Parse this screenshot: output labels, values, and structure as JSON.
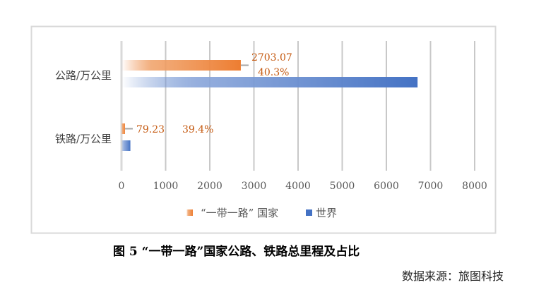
{
  "chart_data": {
    "type": "bar",
    "orientation": "horizontal",
    "categories": [
      "公路/万公里",
      "铁路/万公里"
    ],
    "series": [
      {
        "name": "“一带一路” 国家",
        "values": [
          2703.07,
          79.23
        ],
        "labels": [
          "2703.07",
          "79.23"
        ],
        "share_labels": [
          "40.3%",
          "39.4%"
        ],
        "color": "#ED7D31"
      },
      {
        "name": "世界",
        "values": [
          6707,
          201
        ],
        "color": "#4472C4"
      }
    ],
    "xlim": [
      0,
      8000
    ],
    "xticks": [
      "0",
      "1000",
      "2000",
      "3000",
      "4000",
      "5000",
      "6000",
      "7000",
      "8000"
    ],
    "grid": true,
    "legend": "bottom"
  },
  "caption": "图 5  “一带一路”国家公路、铁路总里程及占比",
  "source": "数据来源：旅图科技"
}
